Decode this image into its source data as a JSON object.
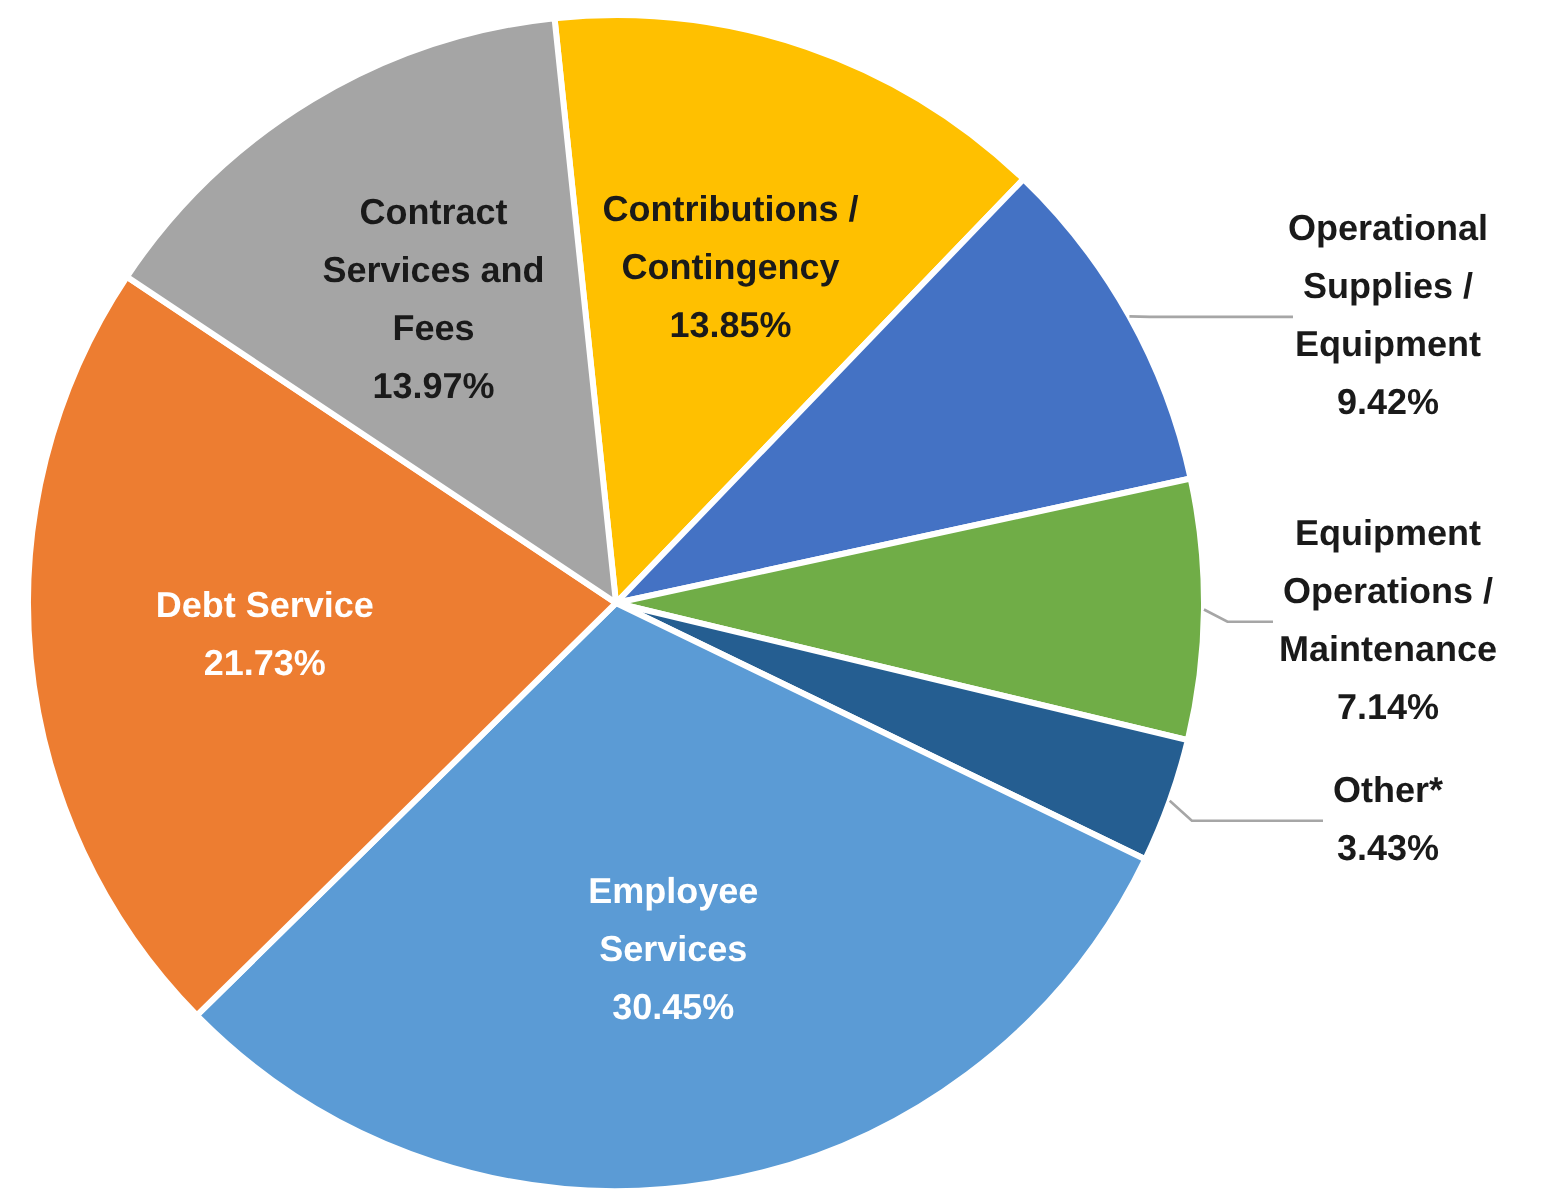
{
  "chart_data": {
    "type": "pie",
    "categories": [
      "Contributions / Contingency",
      "Operational Supplies / Equipment",
      "Equipment Operations / Maintenance",
      "Other*",
      "Employee Services",
      "Debt Service",
      "Contract Services and Fees"
    ],
    "values": [
      13.85,
      9.42,
      7.14,
      3.43,
      30.45,
      21.73,
      13.97
    ],
    "value_labels": [
      "13.85%",
      "9.42%",
      "7.14%",
      "3.43%",
      "30.45%",
      "21.73%",
      "13.97%"
    ],
    "colors": [
      "#ffc000",
      "#4472c4",
      "#70ad47",
      "#255e91",
      "#5b9bd5",
      "#ed7d31",
      "#a5a5a5"
    ],
    "legend": false
  }
}
